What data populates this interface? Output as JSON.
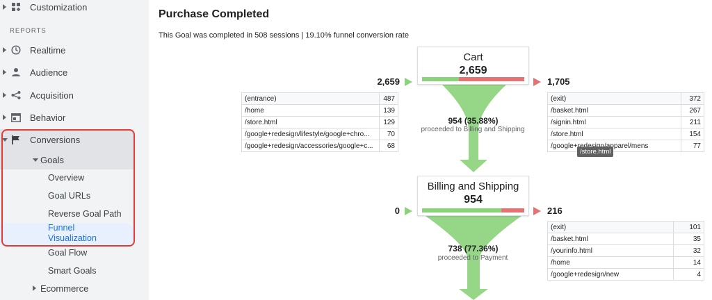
{
  "sidebar": {
    "customization_label": "Customization",
    "reports_heading": "REPORTS",
    "items": [
      {
        "label": "Realtime"
      },
      {
        "label": "Audience"
      },
      {
        "label": "Acquisition"
      },
      {
        "label": "Behavior"
      },
      {
        "label": "Conversions"
      }
    ],
    "goals_label": "Goals",
    "goals_subitems": [
      {
        "label": "Overview"
      },
      {
        "label": "Goal URLs"
      },
      {
        "label": "Reverse Goal Path"
      },
      {
        "label": "Funnel\nVisualization"
      },
      {
        "label": "Goal Flow"
      },
      {
        "label": "Smart Goals"
      }
    ],
    "ecommerce_label": "Ecommerce",
    "active_color": "#1a73e8",
    "highlight_color": "#e53935"
  },
  "main": {
    "title": "Purchase Completed",
    "summary": "This Goal was completed in 508 sessions | 19.10% funnel conversion rate",
    "stages": [
      {
        "name": "Cart",
        "count": "2,659",
        "entries": "2,659",
        "exits": "1,705",
        "proceed_fraction": 0.3588,
        "proceed_pct": "954 (35.88%)",
        "proceed_desc": "proceeded to Billing and Shipping",
        "entrance_rows": [
          {
            "page": "(entrance)",
            "value": "487"
          },
          {
            "page": "/home",
            "value": "139"
          },
          {
            "page": "/store.html",
            "value": "129"
          },
          {
            "page": "/google+redesign/lifestyle/google+chro...",
            "value": "70"
          },
          {
            "page": "/google+redesign/accessories/google+c...",
            "value": "68"
          }
        ],
        "exit_rows": [
          {
            "page": "(exit)",
            "value": "372"
          },
          {
            "page": "/basket.html",
            "value": "267"
          },
          {
            "page": "/signin.html",
            "value": "211"
          },
          {
            "page": "/store.html",
            "value": "154"
          },
          {
            "page": "/google+redesign/apparel/mens",
            "value": "77"
          }
        ]
      },
      {
        "name": "Billing and Shipping",
        "count": "954",
        "entries": "0",
        "exits": "216",
        "proceed_fraction": 0.7736,
        "proceed_pct": "738 (77.36%)",
        "proceed_desc": "proceeded to Payment",
        "exit_rows": [
          {
            "page": "(exit)",
            "value": "101"
          },
          {
            "page": "/basket.html",
            "value": "35"
          },
          {
            "page": "/yourinfo.html",
            "value": "32"
          },
          {
            "page": "/home",
            "value": "14"
          },
          {
            "page": "/google+redesign/new",
            "value": "4"
          }
        ]
      }
    ],
    "tooltip": "/store.html",
    "colors": {
      "proceed": "#8bd37a",
      "exit": "#e57373"
    }
  }
}
